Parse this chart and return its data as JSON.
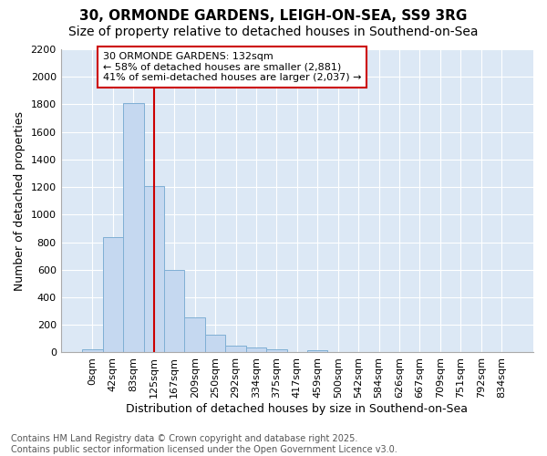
{
  "title1": "30, ORMONDE GARDENS, LEIGH-ON-SEA, SS9 3RG",
  "title2": "Size of property relative to detached houses in Southend-on-Sea",
  "xlabel": "Distribution of detached houses by size in Southend-on-Sea",
  "ylabel": "Number of detached properties",
  "bin_labels": [
    "0sqm",
    "42sqm",
    "83sqm",
    "125sqm",
    "167sqm",
    "209sqm",
    "250sqm",
    "292sqm",
    "334sqm",
    "375sqm",
    "417sqm",
    "459sqm",
    "500sqm",
    "542sqm",
    "584sqm",
    "626sqm",
    "667sqm",
    "709sqm",
    "751sqm",
    "792sqm",
    "834sqm"
  ],
  "bar_heights": [
    25,
    840,
    1810,
    1210,
    600,
    255,
    130,
    50,
    35,
    25,
    0,
    15,
    0,
    0,
    0,
    0,
    0,
    0,
    0,
    0,
    0
  ],
  "bar_color": "#c5d8f0",
  "bar_edge_color": "#7fafd4",
  "red_line_x": 3,
  "annotation_text": "30 ORMONDE GARDENS: 132sqm\n← 58% of detached houses are smaller (2,881)\n41% of semi-detached houses are larger (2,037) →",
  "annotation_box_color": "#ffffff",
  "annotation_box_edge": "#cc0000",
  "ylim": [
    0,
    2200
  ],
  "yticks": [
    0,
    200,
    400,
    600,
    800,
    1000,
    1200,
    1400,
    1600,
    1800,
    2000,
    2200
  ],
  "bg_color": "#ffffff",
  "plot_bg_color": "#dce8f5",
  "grid_color": "#ffffff",
  "footer_line1": "Contains HM Land Registry data © Crown copyright and database right 2025.",
  "footer_line2": "Contains public sector information licensed under the Open Government Licence v3.0.",
  "title_fontsize": 11,
  "subtitle_fontsize": 10,
  "axis_label_fontsize": 9,
  "tick_fontsize": 8,
  "annotation_fontsize": 8,
  "footer_fontsize": 7
}
